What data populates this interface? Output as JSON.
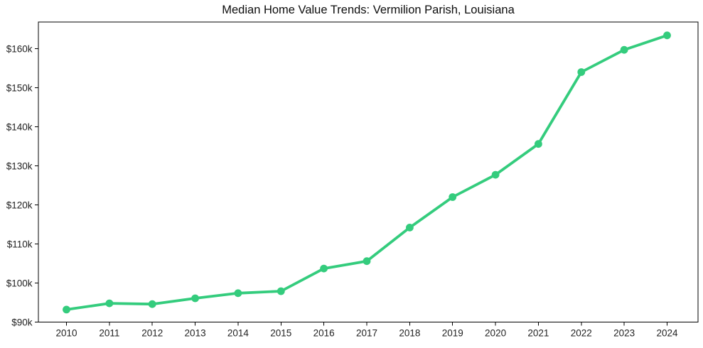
{
  "chart_data": {
    "type": "line",
    "title": "Median Home Value Trends: Vermilion Parish, Louisiana",
    "x": [
      2010,
      2011,
      2012,
      2013,
      2014,
      2015,
      2016,
      2017,
      2018,
      2019,
      2020,
      2021,
      2022,
      2023,
      2024
    ],
    "xtick_labels": [
      "2010",
      "2011",
      "2012",
      "2013",
      "2014",
      "2015",
      "2016",
      "2017",
      "2018",
      "2019",
      "2020",
      "2021",
      "2022",
      "2023",
      "2024"
    ],
    "values": [
      93200,
      94800,
      94600,
      96100,
      97400,
      97900,
      103700,
      105600,
      114200,
      122000,
      127700,
      135600,
      154000,
      159700,
      163400
    ],
    "yticks": [
      90000,
      100000,
      110000,
      120000,
      130000,
      140000,
      150000,
      160000
    ],
    "ytick_labels": [
      "$90k",
      "$100k",
      "$110k",
      "$120k",
      "$130k",
      "$140k",
      "$150k",
      "$160k"
    ],
    "ylim": [
      90000,
      166800
    ],
    "xlabel": "",
    "ylabel": "",
    "grid": false,
    "legend": false,
    "frame": "box",
    "line_color": "#34cc7d",
    "marker_color": "#34cc7d",
    "frame_color": "#000000",
    "tick_text_color": "#1f1f1f",
    "background_color": "#ffffff"
  }
}
